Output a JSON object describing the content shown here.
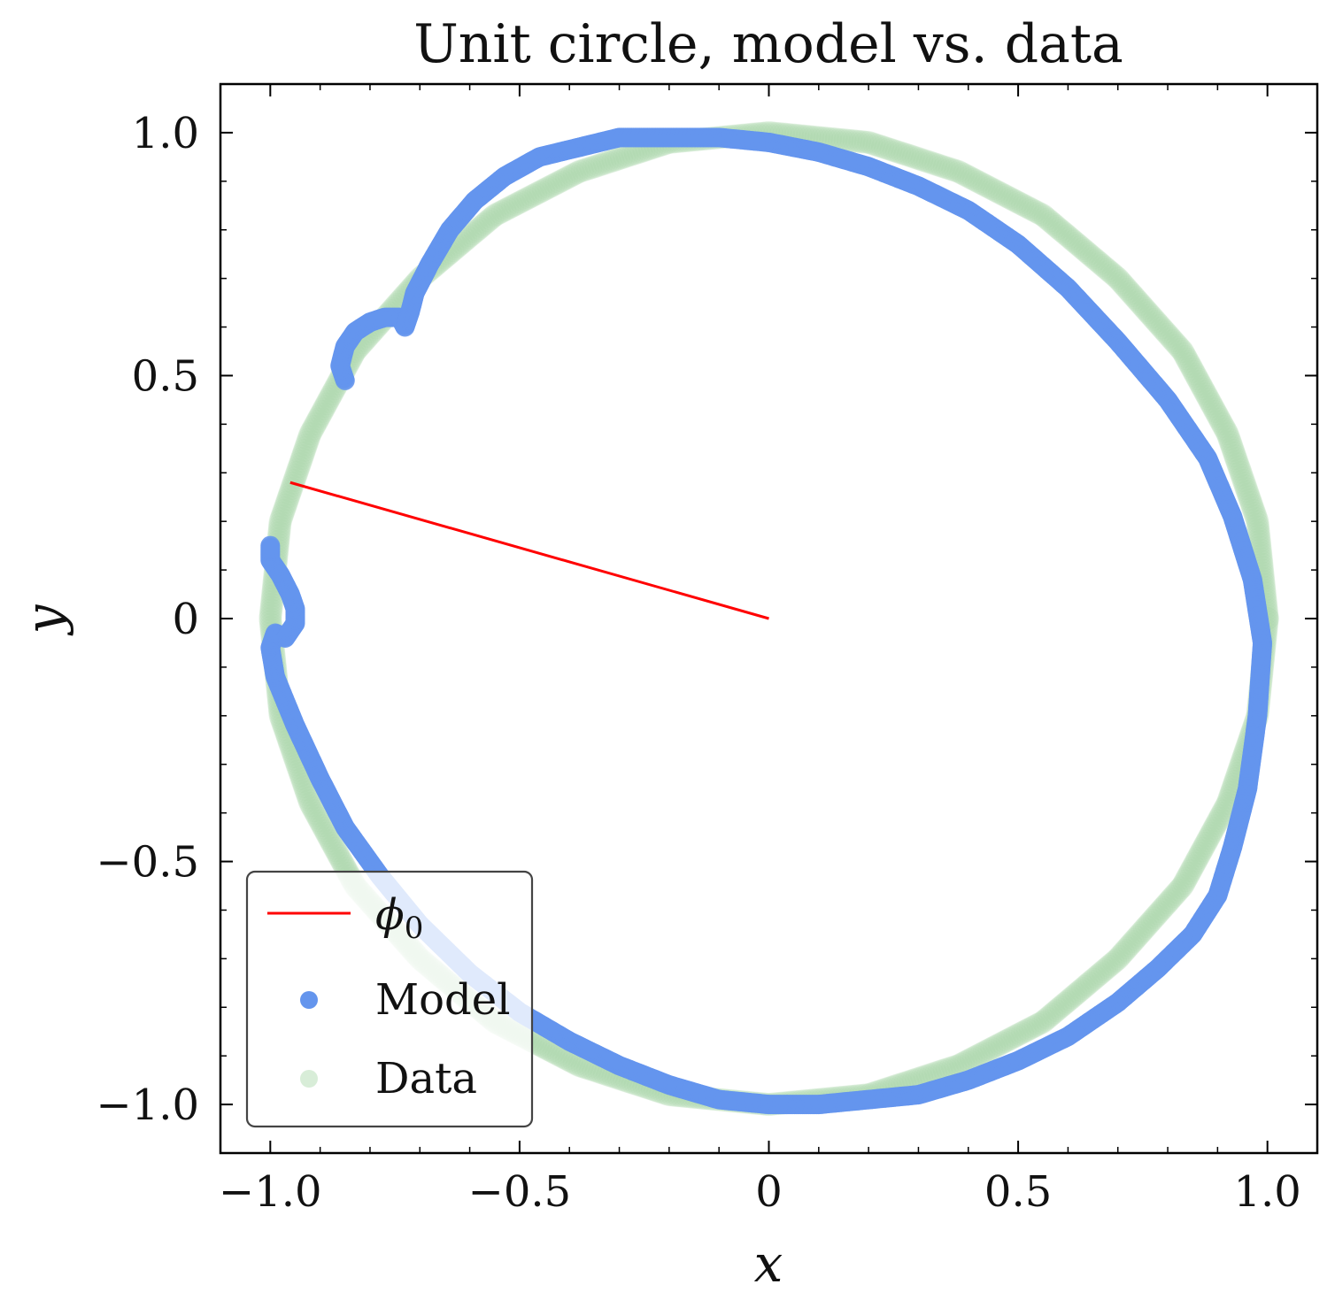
{
  "chart_data": {
    "type": "scatter",
    "title": "Unit circle, model vs. data",
    "xlabel": "x",
    "ylabel": "y",
    "xlim": [
      -1.1,
      1.1
    ],
    "ylim": [
      -1.1,
      1.1
    ],
    "x_ticks": [
      -1.0,
      -0.5,
      0,
      0.5,
      1.0
    ],
    "y_ticks": [
      -1.0,
      -0.5,
      0,
      0.5,
      1.0
    ],
    "x_tick_labels": [
      "−1.0",
      "−0.5",
      "0",
      "0.5",
      "1.0"
    ],
    "y_tick_labels": [
      "−1.0",
      "−0.5",
      "0",
      "0.5",
      "1.0"
    ],
    "grid": false,
    "legend_position": "bottom-left",
    "colors": {
      "phi0": "#ff0000",
      "model": "#6495ed",
      "data": "#a9d6a9"
    },
    "phi0_line": {
      "name": "ϕ0",
      "x": [
        0,
        -0.96
      ],
      "y": [
        0,
        0.28
      ]
    },
    "series": [
      {
        "name": "Model",
        "x": [
          -0.85,
          -0.86,
          -0.85,
          -0.83,
          -0.8,
          -0.77,
          -0.74,
          -0.73,
          -0.72,
          -0.71,
          -0.68,
          -0.64,
          -0.59,
          -0.53,
          -0.46,
          -0.38,
          -0.3,
          -0.2,
          -0.1,
          0.0,
          0.1,
          0.2,
          0.3,
          0.4,
          0.5,
          0.6,
          0.7,
          0.8,
          0.88,
          0.93,
          0.97,
          0.99,
          0.98,
          0.96,
          0.93,
          0.9,
          0.85,
          0.78,
          0.7,
          0.6,
          0.5,
          0.4,
          0.3,
          0.2,
          0.1,
          0.0,
          -0.1,
          -0.2,
          -0.3,
          -0.4,
          -0.5,
          -0.6,
          -0.7,
          -0.78,
          -0.85,
          -0.9,
          -0.95,
          -0.99,
          -1.0,
          -0.99,
          -0.97,
          -0.95,
          -0.95,
          -0.96,
          -0.98,
          -1.0,
          -1.0
        ],
        "y": [
          0.49,
          0.52,
          0.56,
          0.59,
          0.61,
          0.62,
          0.62,
          0.6,
          0.63,
          0.67,
          0.73,
          0.8,
          0.86,
          0.91,
          0.95,
          0.97,
          0.99,
          0.99,
          0.99,
          0.98,
          0.96,
          0.93,
          0.89,
          0.84,
          0.77,
          0.68,
          0.57,
          0.45,
          0.33,
          0.21,
          0.08,
          -0.05,
          -0.2,
          -0.35,
          -0.47,
          -0.57,
          -0.65,
          -0.72,
          -0.79,
          -0.86,
          -0.91,
          -0.95,
          -0.98,
          -0.99,
          -1.0,
          -1.0,
          -0.99,
          -0.96,
          -0.92,
          -0.87,
          -0.81,
          -0.73,
          -0.63,
          -0.53,
          -0.43,
          -0.33,
          -0.22,
          -0.12,
          -0.06,
          -0.03,
          -0.04,
          -0.01,
          0.02,
          0.05,
          0.09,
          0.12,
          0.15
        ]
      },
      {
        "name": "Data",
        "x": [
          1.0,
          0.98,
          0.92,
          0.83,
          0.7,
          0.55,
          0.38,
          0.2,
          0.0,
          -0.2,
          -0.38,
          -0.55,
          -0.7,
          -0.83,
          -0.92,
          -0.98,
          -1.0,
          -0.98,
          -0.92,
          -0.83,
          -0.7,
          -0.55,
          -0.38,
          -0.2,
          0.0,
          0.2,
          0.38,
          0.55,
          0.7,
          0.83,
          0.92,
          0.98,
          1.0
        ],
        "y": [
          0.0,
          0.2,
          0.38,
          0.55,
          0.7,
          0.83,
          0.92,
          0.98,
          1.0,
          0.98,
          0.92,
          0.83,
          0.7,
          0.55,
          0.38,
          0.2,
          0.0,
          -0.2,
          -0.38,
          -0.55,
          -0.7,
          -0.83,
          -0.92,
          -0.98,
          -1.0,
          -0.98,
          -0.92,
          -0.83,
          -0.7,
          -0.55,
          -0.38,
          -0.2,
          0.0
        ]
      }
    ]
  }
}
